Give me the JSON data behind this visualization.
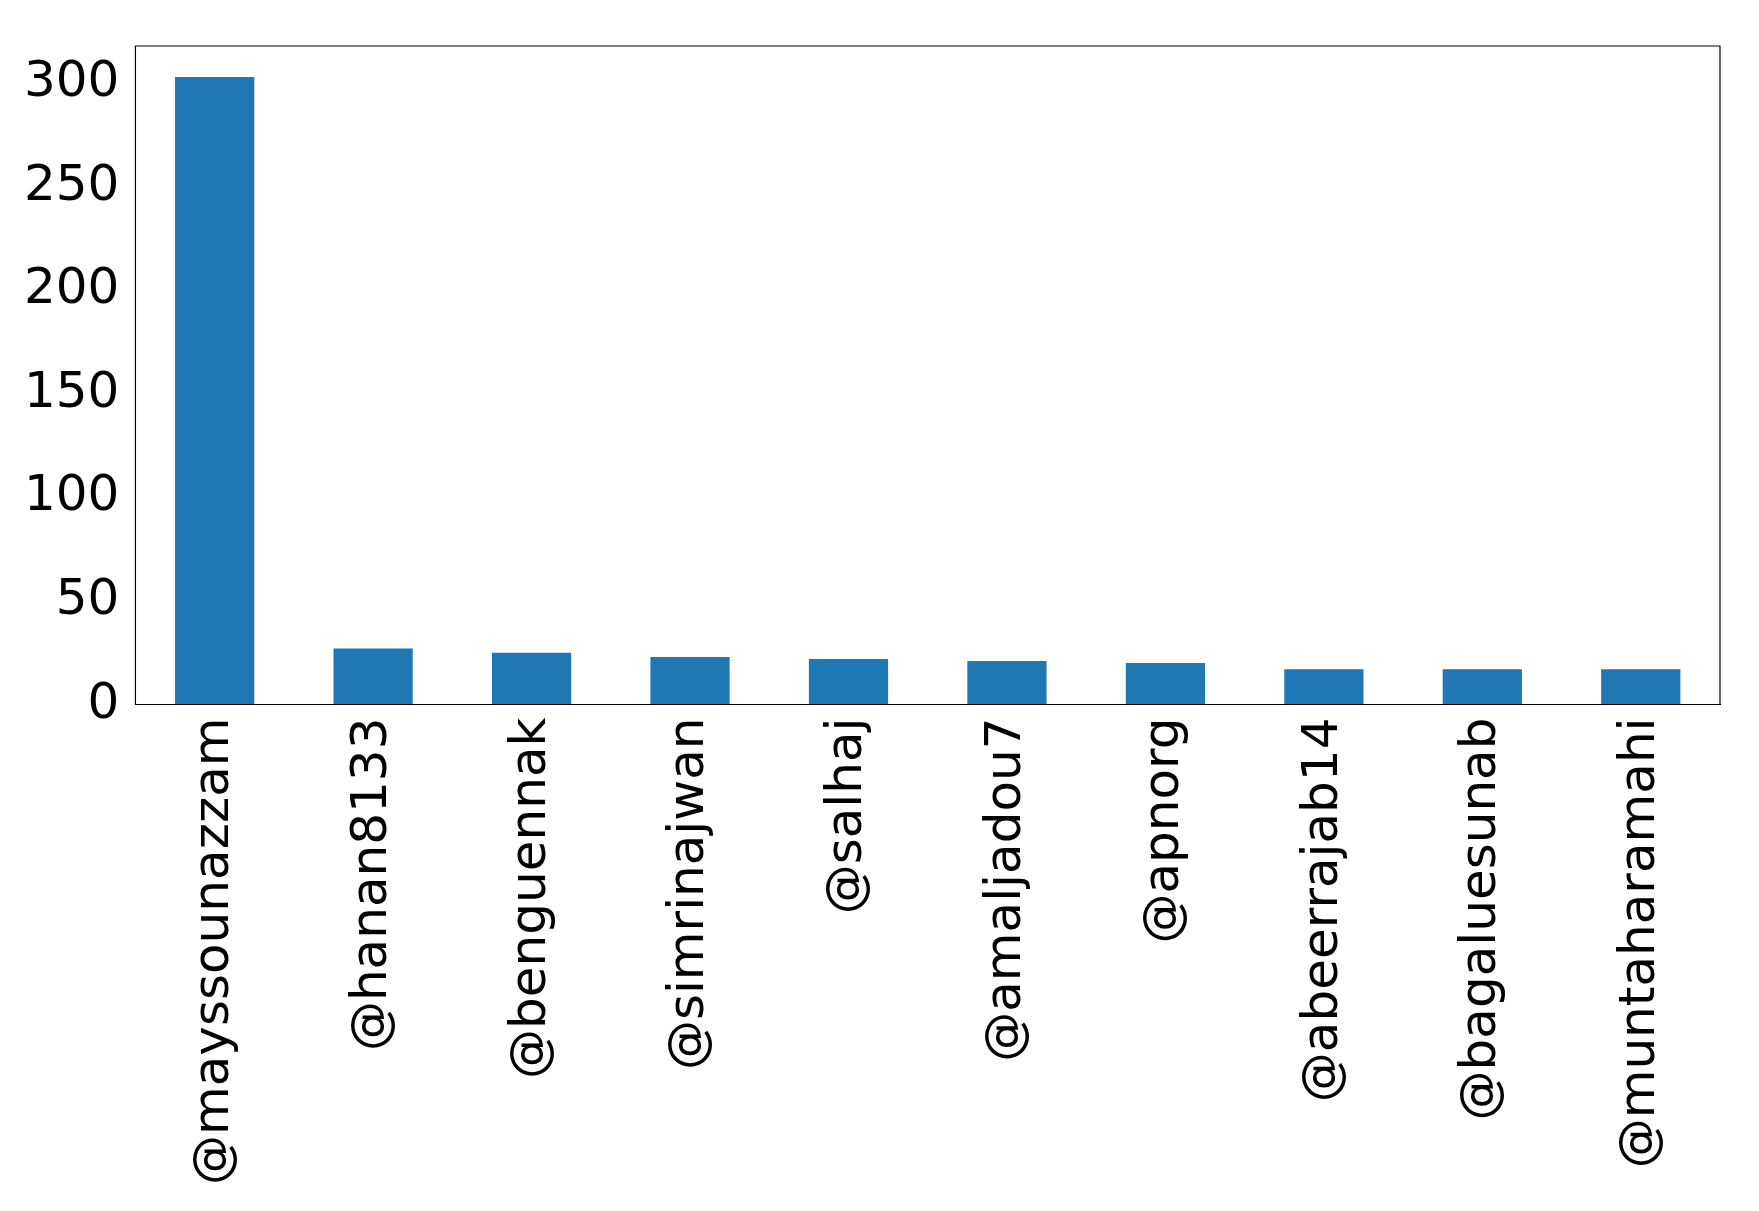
{
  "chart_data": {
    "type": "bar",
    "categories": [
      "@mayssounazzam",
      "@hanan8133",
      "@benguennak",
      "@simrinajwan",
      "@salhaj",
      "@amaljadou7",
      "@apnorg",
      "@abeerrajab14",
      "@bagaluesunab",
      "@muntaharamahi"
    ],
    "values": [
      303,
      27,
      25,
      23,
      22,
      21,
      20,
      17,
      17,
      17
    ],
    "color": "#1f77b4",
    "ylim": [
      0,
      318
    ],
    "yticks": [
      0,
      50,
      100,
      150,
      200,
      250,
      300
    ],
    "grid": false,
    "legend": false
  }
}
